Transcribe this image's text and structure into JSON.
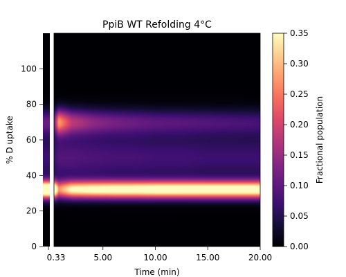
{
  "chart_data": {
    "type": "heatmap",
    "title": "PpiB WT Refolding 4°C",
    "xlabel": "Time (min)",
    "ylabel": "% D uptake",
    "colorbar_label": "Fractional population",
    "colormap": "magma",
    "x_tick_labels": [
      "0.33",
      "5.00",
      "10.00",
      "15.00",
      "20.00"
    ],
    "x_ticks": [
      0.33,
      5,
      10,
      15,
      20
    ],
    "xlim": [
      0.33,
      20
    ],
    "y_ticks": [
      0,
      20,
      40,
      60,
      80,
      100
    ],
    "ylim": [
      0,
      120
    ],
    "clim": [
      0,
      0.35
    ],
    "colorbar_ticks": [
      "0.00",
      "0.05",
      "0.10",
      "0.15",
      "0.20",
      "0.25",
      "0.30",
      "0.35"
    ],
    "series": [
      {
        "center": 32,
        "width": 3.5,
        "amplitude": [
          0.45,
          0.25,
          0.34,
          0.36,
          0.37,
          0.37,
          0.38,
          0.38,
          0.38,
          0.38,
          0.38
        ]
      },
      {
        "center": 70,
        "width": 5.0,
        "amplitude": [
          0.1,
          0.27,
          0.17,
          0.13,
          0.11,
          0.1,
          0.09,
          0.085,
          0.08,
          0.075,
          0.07
        ]
      },
      {
        "center": 50,
        "width": 10.0,
        "amplitude": [
          0.07,
          0.09,
          0.09,
          0.085,
          0.08,
          0.08,
          0.075,
          0.075,
          0.07,
          0.07,
          0.07
        ]
      }
    ],
    "series_time": [
      0.33,
      0.8,
      2,
      4,
      6,
      8,
      10,
      12.5,
      15,
      17.5,
      20
    ]
  }
}
